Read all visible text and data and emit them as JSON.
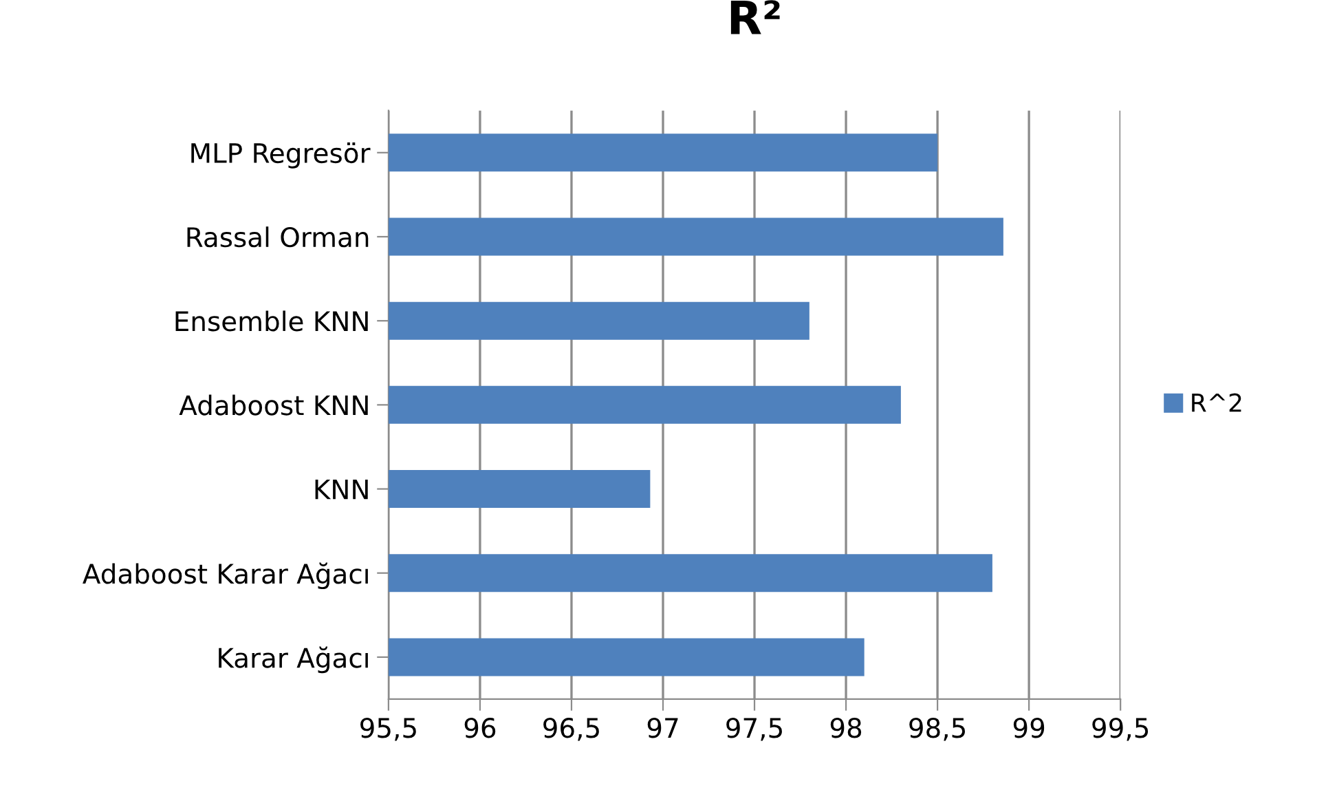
{
  "chart_data": {
    "type": "bar",
    "orientation": "horizontal",
    "title": "R²",
    "categories": [
      "MLP Regresör",
      "Rassal Orman",
      "Ensemble KNN",
      "Adaboost KNN",
      "KNN",
      "Adaboost Karar Ağacı",
      "Karar Ağacı"
    ],
    "series": [
      {
        "name": "R^2",
        "color": "#4f81bd",
        "values": [
          98.5,
          98.86,
          97.8,
          98.3,
          96.93,
          98.8,
          98.1
        ]
      }
    ],
    "xlim": [
      95.5,
      99.5
    ],
    "xticks": [
      {
        "value": 95.5,
        "label": "95,5"
      },
      96,
      {
        "value": 96.5,
        "label": "96,5"
      },
      97,
      {
        "value": 97.5,
        "label": "97,5"
      },
      98,
      {
        "value": 98.5,
        "label": "98,5"
      },
      99,
      {
        "value": 99.5,
        "label": "99,5"
      }
    ],
    "grid": "x",
    "legend": "right"
  }
}
